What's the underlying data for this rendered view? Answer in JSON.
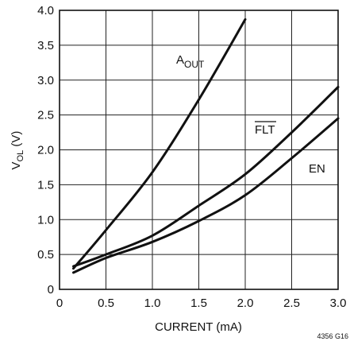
{
  "chart_data": {
    "type": "line",
    "xlabel": "CURRENT (mA)",
    "ylabel": {
      "main": "V",
      "sub": "OL",
      "unit": " (V)"
    },
    "xlim": [
      0,
      3.0
    ],
    "ylim": [
      0,
      4.0
    ],
    "xticks": [
      "0",
      "0.5",
      "1.0",
      "1.5",
      "2.0",
      "2.5",
      "3.0"
    ],
    "yticks": [
      "0",
      "0.5",
      "1.0",
      "1.5",
      "2.0",
      "2.5",
      "3.0",
      "3.5",
      "4.0"
    ],
    "grid": true,
    "footnote": "4356 G16",
    "series": [
      {
        "name": "A_OUT",
        "label_main": "A",
        "label_sub": "OUT",
        "x": [
          0.15,
          0.5,
          1.0,
          1.5,
          2.0
        ],
        "y": [
          0.3,
          0.85,
          1.68,
          2.72,
          3.87
        ]
      },
      {
        "name": "FLT",
        "label_main": "FLT",
        "x": [
          0.15,
          0.5,
          1.0,
          1.5,
          2.0,
          2.5,
          3.0
        ],
        "y": [
          0.33,
          0.5,
          0.77,
          1.2,
          1.65,
          2.25,
          2.9
        ]
      },
      {
        "name": "EN",
        "label_main": "EN",
        "x": [
          0.15,
          0.5,
          1.0,
          1.5,
          2.0,
          2.5,
          3.0
        ],
        "y": [
          0.24,
          0.45,
          0.68,
          0.98,
          1.35,
          1.88,
          2.45
        ]
      }
    ]
  }
}
